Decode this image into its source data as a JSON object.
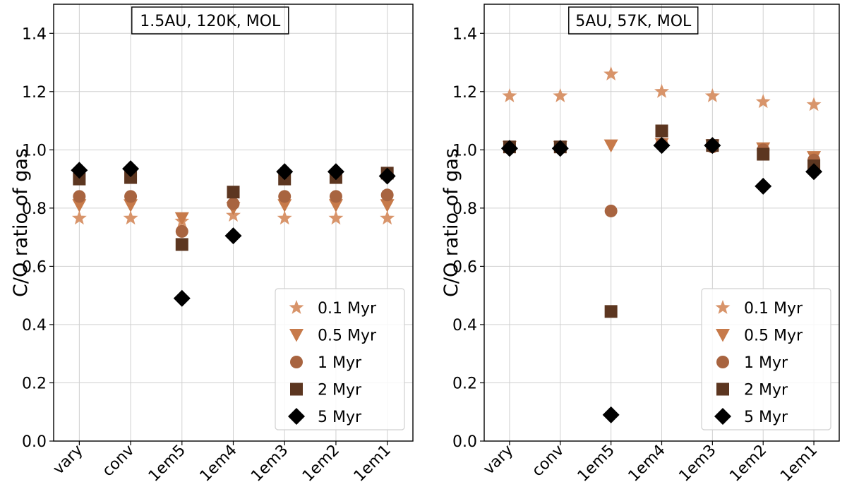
{
  "chart_data": [
    {
      "type": "scatter",
      "title": "1.5AU, 120K, MOL",
      "xlabel": "",
      "ylabel": "C/O ratio of gas",
      "ylim": [
        0.0,
        1.5
      ],
      "yticks": [
        "0.0",
        "0.2",
        "0.4",
        "0.6",
        "0.8",
        "1.0",
        "1.2",
        "1.4"
      ],
      "yticks_values": [
        0.0,
        0.2,
        0.4,
        0.6,
        0.8,
        1.0,
        1.2,
        1.4
      ],
      "categories": [
        "vary",
        "conv",
        "1em5",
        "1em4",
        "1em3",
        "1em2",
        "1em1"
      ],
      "grid": true,
      "legend_position": "lower-right",
      "series": [
        {
          "name": "0.1 Myr",
          "marker": "star",
          "color": "#d8946a",
          "values": [
            0.765,
            0.765,
            0.755,
            0.775,
            0.765,
            0.765,
            0.765
          ]
        },
        {
          "name": "0.5 Myr",
          "marker": "triangle-down",
          "color": "#c77a4a",
          "values": [
            0.81,
            0.81,
            0.765,
            0.8,
            0.81,
            0.81,
            0.81
          ]
        },
        {
          "name": "1 Myr",
          "marker": "circle",
          "color": "#a86440",
          "values": [
            0.84,
            0.84,
            0.72,
            0.815,
            0.84,
            0.84,
            0.845
          ]
        },
        {
          "name": "2 Myr",
          "marker": "square",
          "color": "#5c3620",
          "values": [
            0.9,
            0.905,
            0.675,
            0.855,
            0.9,
            0.905,
            0.92
          ]
        },
        {
          "name": "5 Myr",
          "marker": "diamond",
          "color": "#000000",
          "values": [
            0.93,
            0.935,
            0.49,
            0.705,
            0.925,
            0.925,
            0.91
          ]
        }
      ]
    },
    {
      "type": "scatter",
      "title": "5AU, 57K, MOL",
      "xlabel": "",
      "ylabel": "C/O ratio of gas",
      "ylim": [
        0.0,
        1.5
      ],
      "yticks": [
        "0.0",
        "0.2",
        "0.4",
        "0.6",
        "0.8",
        "1.0",
        "1.2",
        "1.4"
      ],
      "yticks_values": [
        0.0,
        0.2,
        0.4,
        0.6,
        0.8,
        1.0,
        1.2,
        1.4
      ],
      "categories": [
        "vary",
        "conv",
        "1em5",
        "1em4",
        "1em3",
        "1em2",
        "1em1"
      ],
      "grid": true,
      "legend_position": "lower-right",
      "series": [
        {
          "name": "0.1 Myr",
          "marker": "star",
          "color": "#d8946a",
          "values": [
            1.185,
            1.185,
            1.26,
            1.2,
            1.185,
            1.165,
            1.155
          ]
        },
        {
          "name": "0.5 Myr",
          "marker": "triangle-down",
          "color": "#c77a4a",
          "values": [
            1.01,
            1.01,
            1.015,
            1.02,
            1.015,
            1.005,
            0.975
          ]
        },
        {
          "name": "1 Myr",
          "marker": "circle",
          "color": "#a86440",
          "values": [
            1.01,
            1.01,
            0.79,
            1.02,
            1.01,
            1.0,
            0.965
          ]
        },
        {
          "name": "2 Myr",
          "marker": "square",
          "color": "#5c3620",
          "values": [
            1.01,
            1.01,
            0.445,
            1.065,
            1.015,
            0.985,
            0.945
          ]
        },
        {
          "name": "5 Myr",
          "marker": "diamond",
          "color": "#000000",
          "values": [
            1.005,
            1.005,
            0.09,
            1.015,
            1.015,
            0.875,
            0.925
          ]
        }
      ]
    }
  ]
}
